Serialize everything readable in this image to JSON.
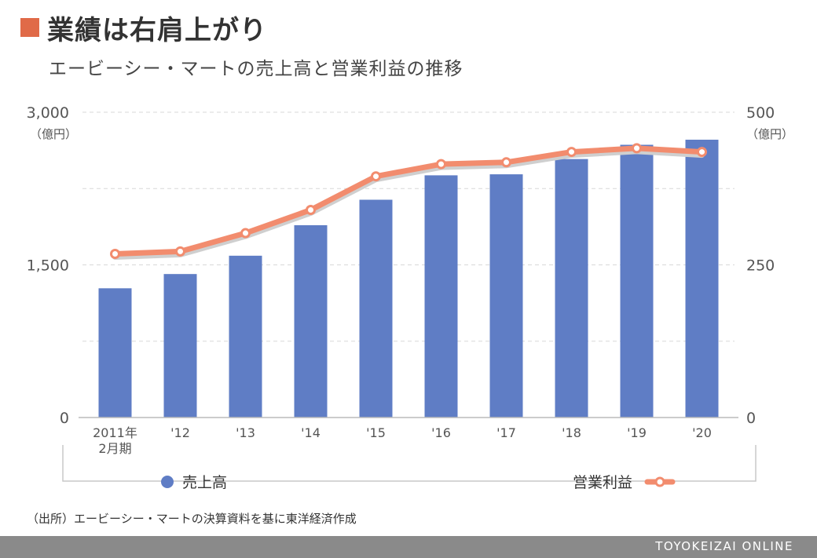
{
  "title": "業績は右肩上がり",
  "subtitle": "エービーシー・マートの売上高と営業利益の推移",
  "colors": {
    "accent": "#e06a48",
    "bar": "#5f7dc5",
    "line": "#f28c6e",
    "axis_text": "#555555",
    "grid": "#d8d8d8",
    "footer": "#8a8a8a"
  },
  "footer": {
    "source": "（出所）エービーシー・マートの決算資料を基に東洋経済作成",
    "brand": "TOYOKEIZAI ONLINE"
  },
  "chart_data": {
    "type": "bar",
    "categories": [
      "2011年\n2月期",
      "'12",
      "'13",
      "'14",
      "'15",
      "'16",
      "'17",
      "'18",
      "'19",
      "'20"
    ],
    "series": [
      {
        "name": "売上高",
        "type": "bar",
        "axis": "left",
        "values": [
          1270,
          1410,
          1590,
          1890,
          2140,
          2380,
          2390,
          2540,
          2680,
          2730
        ]
      },
      {
        "name": "営業利益",
        "type": "line",
        "axis": "right",
        "values": [
          268,
          272,
          302,
          340,
          395,
          415,
          418,
          435,
          441,
          435
        ]
      }
    ],
    "y_left": {
      "ylim": [
        0,
        3000
      ],
      "ticks": [
        "0",
        "1,500",
        "3,000"
      ],
      "unit": "（億円）"
    },
    "y_right": {
      "ylim": [
        0,
        500
      ],
      "ticks": [
        "0",
        "250",
        "500"
      ],
      "unit": "（億円）"
    },
    "grid": true,
    "legend": [
      "売上高",
      "営業利益"
    ]
  }
}
